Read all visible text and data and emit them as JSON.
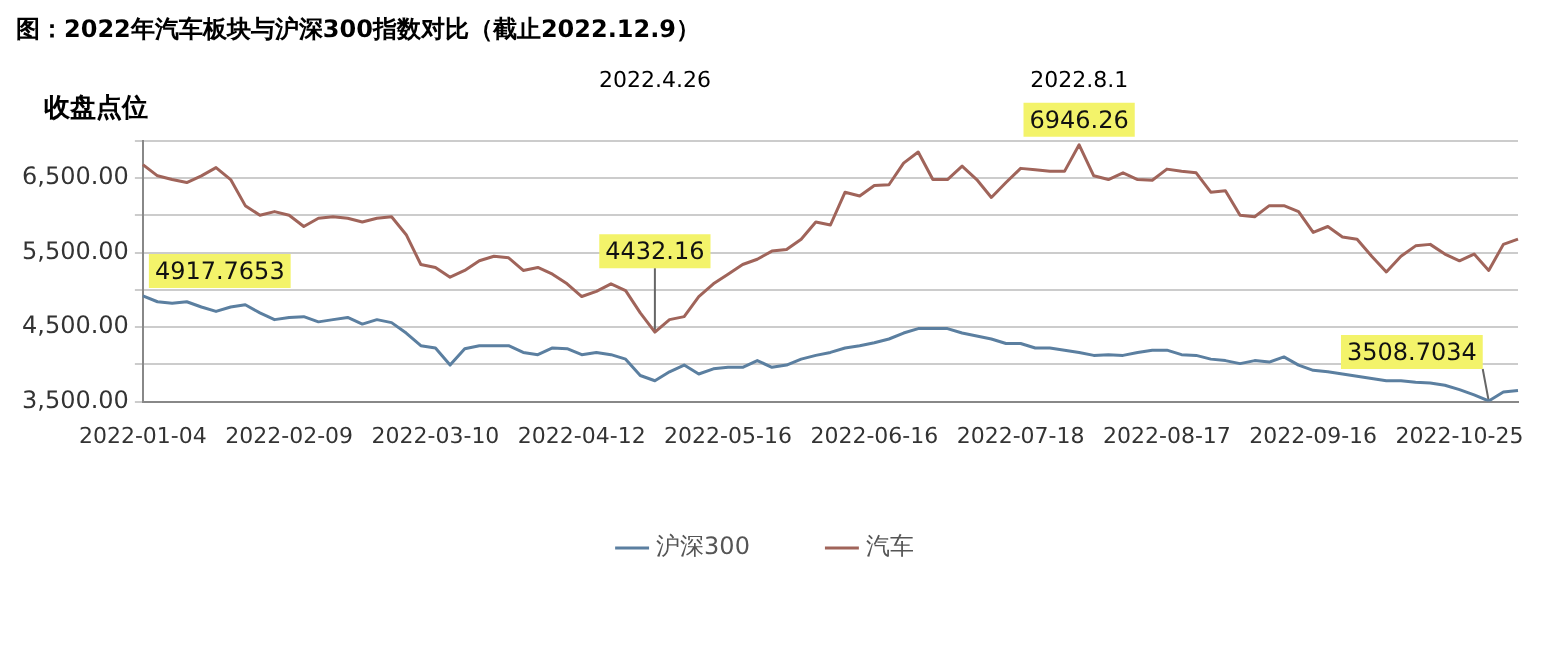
{
  "chart_data": {
    "type": "line",
    "title": "图：2022年汽车板块与沪深300指数对比（截止2022.12.9）",
    "ylabel": "收盘点位",
    "categories": [
      "2022-01-04",
      null,
      null,
      null,
      null,
      null,
      null,
      null,
      null,
      null,
      "2022-02-09",
      null,
      null,
      null,
      null,
      null,
      null,
      null,
      null,
      null,
      "2022-03-10",
      null,
      null,
      null,
      null,
      null,
      null,
      null,
      null,
      null,
      "2022-04-12",
      null,
      null,
      null,
      null,
      null,
      null,
      null,
      null,
      null,
      "2022-05-16",
      null,
      null,
      null,
      null,
      null,
      null,
      null,
      null,
      null,
      "2022-06-16",
      null,
      null,
      null,
      null,
      null,
      null,
      null,
      null,
      null,
      "2022-07-18",
      null,
      null,
      null,
      null,
      null,
      null,
      null,
      null,
      null,
      "2022-08-17",
      null,
      null,
      null,
      null,
      null,
      null,
      null,
      null,
      null,
      "2022-09-16",
      null,
      null,
      null,
      null,
      null,
      null,
      null,
      null,
      null,
      "2022-10-25",
      null,
      null,
      null,
      null
    ],
    "series": [
      {
        "name": "沪深300",
        "color": "#5b7fa0",
        "values": [
          4917.7653,
          4840,
          4820,
          4840,
          4770,
          4710,
          4770,
          4800,
          4690,
          4600,
          4630,
          4640,
          4570,
          4600,
          4630,
          4540,
          4600,
          4560,
          4420,
          4250,
          4220,
          3990,
          4210,
          4250,
          4250,
          4250,
          4160,
          4130,
          4220,
          4210,
          4130,
          4160,
          4130,
          4070,
          3850,
          3780,
          3900,
          3990,
          3870,
          3940,
          3960,
          3960,
          4050,
          3960,
          3990,
          4070,
          4120,
          4160,
          4220,
          4250,
          4290,
          4340,
          4420,
          4480,
          4480,
          4480,
          4420,
          4380,
          4340,
          4280,
          4280,
          4220,
          4220,
          4190,
          4160,
          4120,
          4130,
          4120,
          4160,
          4190,
          4190,
          4130,
          4120,
          4070,
          4050,
          4010,
          4050,
          4030,
          4100,
          3990,
          3920,
          3900,
          3870,
          3840,
          3810,
          3780,
          3780,
          3760,
          3750,
          3720,
          3660,
          3590,
          3508.7034,
          3630,
          3650
        ],
        "value_labels": [
          "4917.7653",
          null,
          null,
          null,
          null,
          null,
          null,
          null,
          null,
          null,
          null,
          null,
          null,
          null,
          null,
          null,
          null,
          null,
          null,
          null,
          null,
          null,
          null,
          null,
          null,
          null,
          null,
          null,
          null,
          null,
          null,
          null,
          null,
          null,
          null,
          null,
          null,
          null,
          null,
          null,
          null,
          null,
          null,
          null,
          null,
          null,
          null,
          null,
          null,
          null,
          null,
          null,
          null,
          null,
          null,
          null,
          null,
          null,
          null,
          null,
          null,
          null,
          null,
          null,
          null,
          null,
          null,
          null,
          null,
          null,
          null,
          null,
          null,
          null,
          null,
          null,
          null,
          null,
          null,
          null,
          null,
          null,
          null,
          null,
          null,
          null,
          null,
          null,
          null,
          null,
          null,
          null,
          "3508.7034",
          null,
          null
        ]
      },
      {
        "name": "汽车",
        "color": "#a0645a",
        "values": [
          6680,
          6530,
          6480,
          6440,
          6530,
          6640,
          6480,
          6130,
          6000,
          6050,
          6000,
          5850,
          5960,
          5980,
          5960,
          5910,
          5960,
          5980,
          5740,
          5340,
          5300,
          5170,
          5260,
          5390,
          5450,
          5430,
          5260,
          5300,
          5210,
          5080,
          4910,
          4980,
          5080,
          4990,
          4690,
          4432.16,
          4600,
          4640,
          4910,
          5080,
          5210,
          5340,
          5410,
          5520,
          5540,
          5680,
          5910,
          5870,
          6310,
          6260,
          6400,
          6410,
          6700,
          6850,
          6480,
          6480,
          6660,
          6480,
          6240,
          6440,
          6630,
          6610,
          6590,
          6590,
          6946.26,
          6530,
          6480,
          6570,
          6480,
          6470,
          6620,
          6590,
          6570,
          6310,
          6330,
          6000,
          5980,
          6130,
          6130,
          6050,
          5770,
          5850,
          5710,
          5680,
          5450,
          5240,
          5450,
          5590,
          5610,
          5480,
          5390,
          5480,
          5260,
          5610,
          5680
        ],
        "value_labels": [
          null,
          null,
          null,
          null,
          null,
          null,
          null,
          null,
          null,
          null,
          null,
          null,
          null,
          null,
          null,
          null,
          null,
          null,
          null,
          null,
          null,
          null,
          null,
          null,
          null,
          null,
          null,
          null,
          null,
          null,
          null,
          null,
          null,
          null,
          null,
          "4432.16",
          null,
          null,
          null,
          null,
          null,
          null,
          null,
          null,
          null,
          null,
          null,
          null,
          null,
          null,
          null,
          null,
          null,
          null,
          null,
          null,
          null,
          null,
          null,
          null,
          null,
          null,
          null,
          null,
          "6946.26",
          null,
          null,
          null,
          null,
          null,
          null,
          null,
          null,
          null,
          null,
          null,
          null,
          null,
          null,
          null,
          null,
          null,
          null,
          null,
          null,
          null,
          null,
          null,
          null,
          null,
          null,
          null,
          null,
          null,
          null
        ]
      }
    ],
    "ylim": [
      3500,
      7000
    ],
    "yticks": [
      {
        "value": 3500,
        "label": "3,500.00"
      },
      {
        "value": 4000,
        "label": null
      },
      {
        "value": 4500,
        "label": "4,500.00"
      },
      {
        "value": 5000,
        "label": null
      },
      {
        "value": 5500,
        "label": "5,500.00"
      },
      {
        "value": 6000,
        "label": null
      },
      {
        "value": 6500,
        "label": "6,500.00"
      },
      {
        "value": 7000,
        "label": null
      }
    ],
    "grid": "y",
    "legend": "bottom",
    "marker": "none",
    "line_style": "solid",
    "annotations": [
      "2022.4.26",
      "2022.8.1"
    ]
  }
}
